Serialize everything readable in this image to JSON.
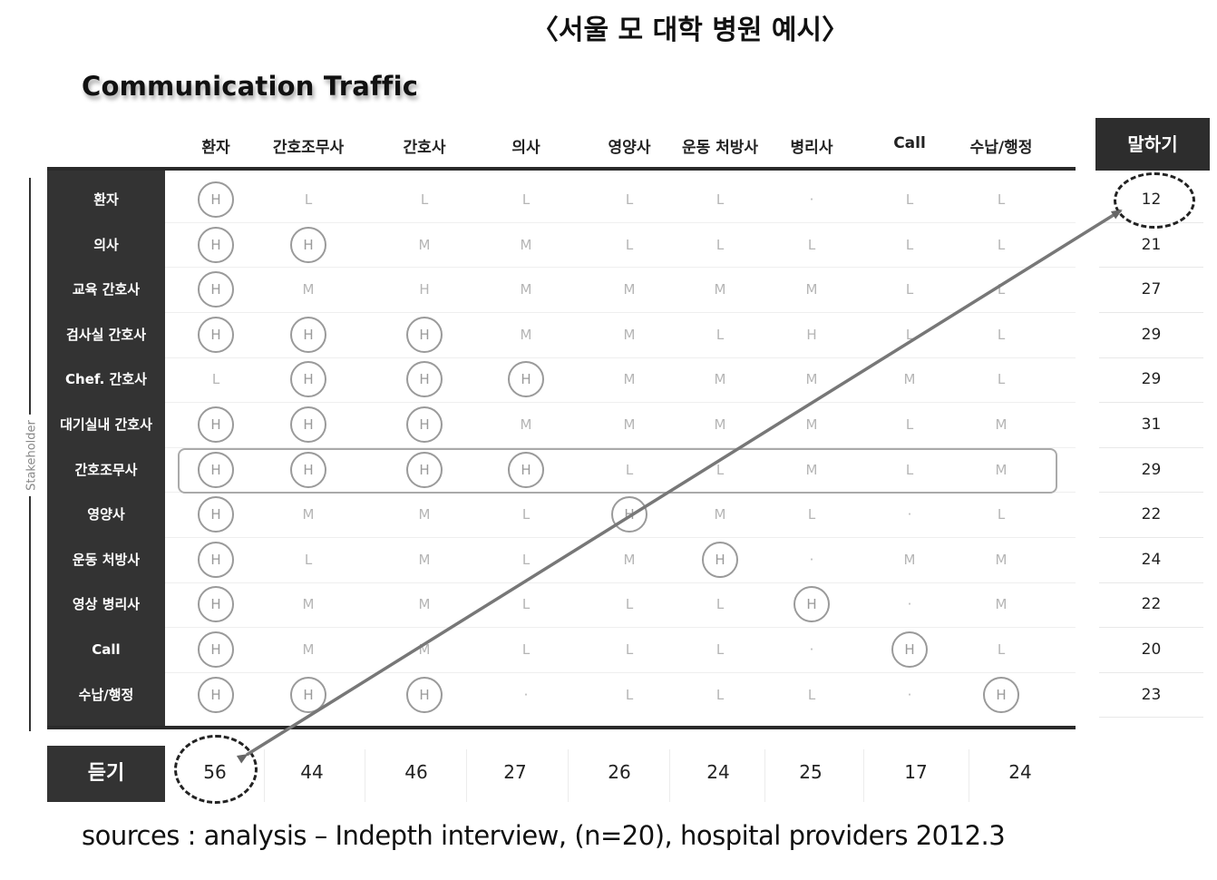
{
  "title": "〈서울 모 대학 병원 예시〉",
  "chart_data": {
    "type": "table",
    "title": "Communication Traffic",
    "row_axis_label": "Stakeholder",
    "columns": [
      "환자",
      "간호조무사",
      "간호사",
      "의사",
      "영양사",
      "운동 처방사",
      "병리사",
      "Call",
      "수납/행정"
    ],
    "rows": [
      {
        "label": "환자",
        "cells": [
          "H",
          "L",
          "L",
          "L",
          "L",
          "L",
          "·",
          "L",
          "L"
        ],
        "circled": [
          0
        ],
        "speak": "12"
      },
      {
        "label": "의사",
        "cells": [
          "H",
          "H",
          "M",
          "M",
          "L",
          "L",
          "L",
          "L",
          "L"
        ],
        "circled": [
          0,
          1
        ],
        "speak": "21"
      },
      {
        "label": "교육 간호사",
        "cells": [
          "H",
          "M",
          "H",
          "M",
          "M",
          "M",
          "M",
          "L",
          "L"
        ],
        "circled": [
          0
        ],
        "speak": "27"
      },
      {
        "label": "검사실 간호사",
        "cells": [
          "H",
          "H",
          "H",
          "M",
          "M",
          "L",
          "H",
          "L",
          "L"
        ],
        "circled": [
          0,
          1,
          2
        ],
        "speak": "29"
      },
      {
        "label": "Chef. 간호사",
        "cells": [
          "L",
          "H",
          "H",
          "H",
          "M",
          "M",
          "M",
          "M",
          "L"
        ],
        "circled": [
          1,
          2,
          3
        ],
        "speak": "29"
      },
      {
        "label": "대기실내 간호사",
        "cells": [
          "H",
          "H",
          "H",
          "M",
          "M",
          "M",
          "M",
          "L",
          "M"
        ],
        "circled": [
          0,
          1,
          2
        ],
        "speak": "31"
      },
      {
        "label": "간호조무사",
        "cells": [
          "H",
          "H",
          "H",
          "H",
          "L",
          "L",
          "M",
          "L",
          "M"
        ],
        "circled": [
          0,
          1,
          2,
          3
        ],
        "speak": "29"
      },
      {
        "label": "영양사",
        "cells": [
          "H",
          "M",
          "M",
          "L",
          "H",
          "M",
          "L",
          "·",
          "L"
        ],
        "circled": [
          0,
          4
        ],
        "speak": "22"
      },
      {
        "label": "운동 처방사",
        "cells": [
          "H",
          "L",
          "M",
          "L",
          "M",
          "H",
          "·",
          "M",
          "M"
        ],
        "circled": [
          0,
          5
        ],
        "speak": "24"
      },
      {
        "label": "영상 병리사",
        "cells": [
          "H",
          "M",
          "M",
          "L",
          "L",
          "L",
          "H",
          "·",
          "M"
        ],
        "circled": [
          0,
          6
        ],
        "speak": "22"
      },
      {
        "label": "Call",
        "cells": [
          "H",
          "M",
          "M",
          "L",
          "L",
          "L",
          "·",
          "H",
          "L"
        ],
        "circled": [
          0,
          7
        ],
        "speak": "20"
      },
      {
        "label": "수납/행정",
        "cells": [
          "H",
          "H",
          "H",
          "·",
          "L",
          "L",
          "L",
          "·",
          "H"
        ],
        "circled": [
          0,
          1,
          2,
          8
        ],
        "speak": "23"
      }
    ],
    "highlighted_row": 6,
    "speak_header": "말하기",
    "listen_label": "듣기",
    "listen_totals": [
      "56",
      "44",
      "46",
      "27",
      "26",
      "24",
      "25",
      "17",
      "24"
    ],
    "emphasized": {
      "speak_row": 0,
      "listen_col": 0
    },
    "arrow": "double-headed, from 듣기 total of 환자 to 말하기 total of 환자"
  },
  "source": "sources :  analysis – Indepth interview, (n=20), hospital providers  2012.3"
}
